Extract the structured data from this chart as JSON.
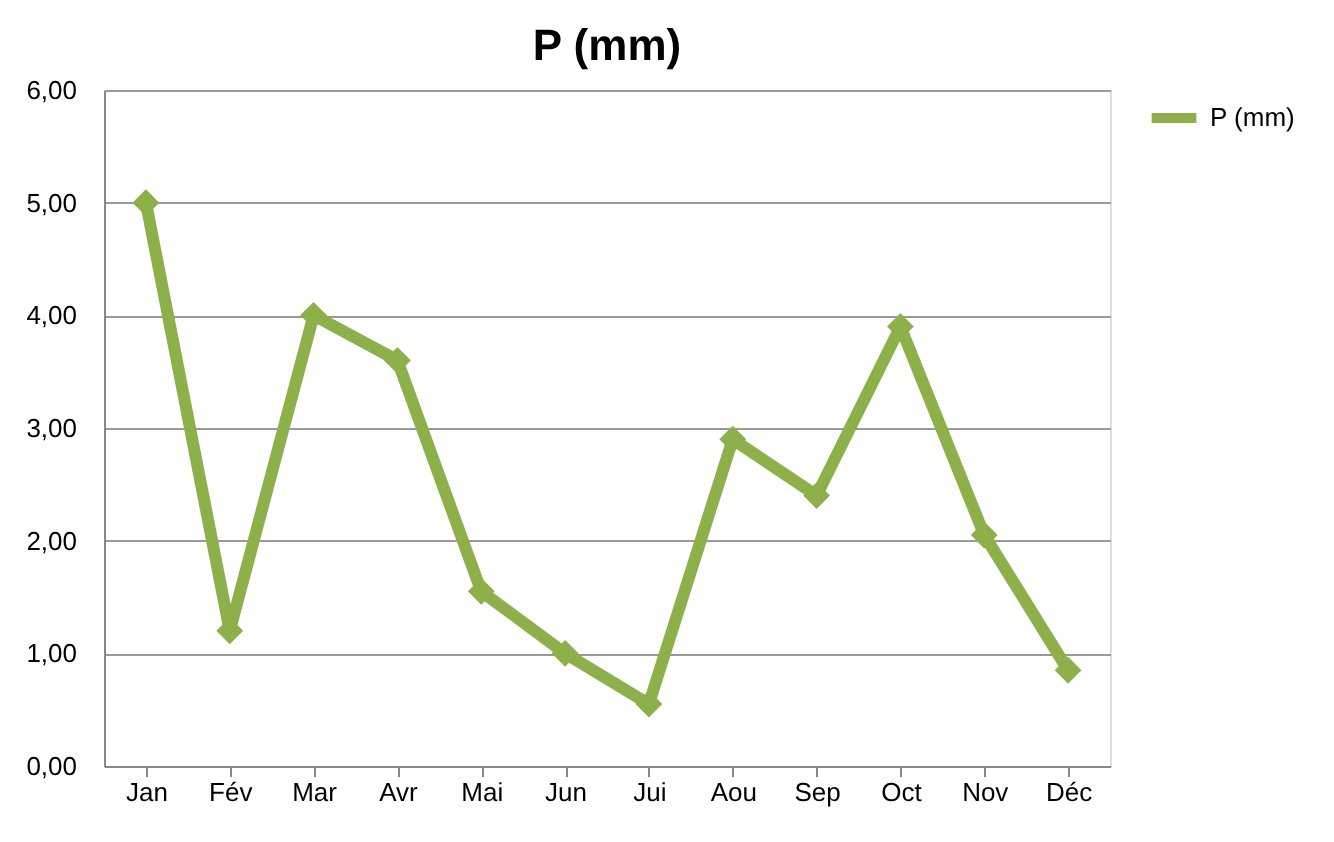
{
  "chart_data": {
    "type": "line",
    "title": "P (mm)",
    "categories": [
      "Jan",
      "Fév",
      "Mar",
      "Avr",
      "Mai",
      "Jun",
      "Jui",
      "Aou",
      "Sep",
      "Oct",
      "Nov",
      "Déc"
    ],
    "series": [
      {
        "name": "P (mm)",
        "color": "#8db04a",
        "values": [
          5.0,
          1.2,
          4.0,
          3.6,
          1.55,
          1.0,
          0.55,
          2.9,
          2.4,
          3.9,
          2.05,
          0.85
        ]
      }
    ],
    "ylim": [
      0,
      6
    ],
    "yticks": [
      {
        "value": 0,
        "label": "0,00"
      },
      {
        "value": 1,
        "label": "1,00"
      },
      {
        "value": 2,
        "label": "2,00"
      },
      {
        "value": 3,
        "label": "3,00"
      },
      {
        "value": 4,
        "label": "4,00"
      },
      {
        "value": 5,
        "label": "5,00"
      },
      {
        "value": 6,
        "label": "6,00"
      }
    ],
    "grid": "y",
    "legend": "right",
    "marker": "diamond",
    "line_style": "solid"
  }
}
